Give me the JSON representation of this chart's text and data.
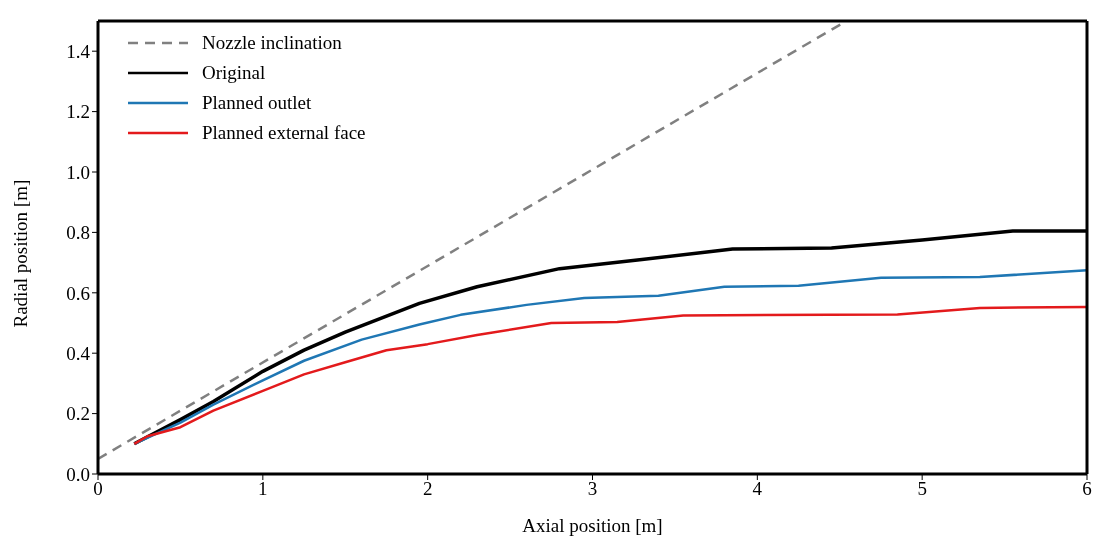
{
  "chart_data": {
    "type": "line",
    "xlabel": "Axial position [m]",
    "ylabel": "Radial position [m]",
    "xlim": [
      0,
      6
    ],
    "xticks": [
      0,
      1,
      2,
      3,
      4,
      5,
      6
    ],
    "ylim": [
      0,
      1.5
    ],
    "yticks": [
      {
        "value": 0,
        "label": "0.0"
      },
      {
        "value": 0.2,
        "label": "0.2"
      },
      {
        "value": 0.4,
        "label": "0.4"
      },
      {
        "value": 0.6,
        "label": "0.6"
      },
      {
        "value": 0.8,
        "label": "0.8"
      },
      {
        "value": 1,
        "label": "1.0"
      },
      {
        "value": 1.2,
        "label": "1.2"
      },
      {
        "value": 1.4,
        "label": "1.4"
      }
    ],
    "grid": false,
    "legend": "top left",
    "marker": "none",
    "series": [
      {
        "name": "Nozzle inclination",
        "color": "#808080",
        "line_style": "dashed",
        "x": [
          0,
          4.54
        ],
        "values": [
          0.05,
          1.5
        ]
      },
      {
        "name": "Original",
        "color": "#000000",
        "line_style": "solid",
        "x": [
          0.22,
          0.5,
          0.7,
          1,
          1.25,
          1.5,
          1.95,
          2.3,
          2.8,
          3.3,
          3.85,
          4.45,
          5,
          5.55,
          6
        ],
        "values": [
          0.1,
          0.18,
          0.24,
          0.34,
          0.41,
          0.47,
          0.565,
          0.62,
          0.68,
          0.71,
          0.745,
          0.748,
          0.775,
          0.805,
          0.805
        ]
      },
      {
        "name": "Planned outlet",
        "color": "#1f77b4",
        "line_style": "solid",
        "x": [
          0.22,
          0.5,
          0.7,
          1,
          1.25,
          1.6,
          1.95,
          2.2,
          2.6,
          2.95,
          3.4,
          3.8,
          4.25,
          4.75,
          5.35,
          6
        ],
        "values": [
          0.1,
          0.17,
          0.23,
          0.31,
          0.375,
          0.445,
          0.495,
          0.527,
          0.56,
          0.583,
          0.59,
          0.62,
          0.623,
          0.65,
          0.652,
          0.675
        ]
      },
      {
        "name": "Planned external face",
        "color": "#e31a1c",
        "line_style": "solid",
        "x": [
          0.22,
          0.3,
          0.5,
          0.7,
          1,
          1.25,
          1.5,
          1.75,
          2,
          2.3,
          2.75,
          3.15,
          3.55,
          4.85,
          5.35,
          6
        ],
        "values": [
          0.1,
          0.125,
          0.155,
          0.21,
          0.275,
          0.33,
          0.37,
          0.41,
          0.43,
          0.46,
          0.5,
          0.503,
          0.525,
          0.528,
          0.55,
          0.553
        ]
      }
    ]
  }
}
